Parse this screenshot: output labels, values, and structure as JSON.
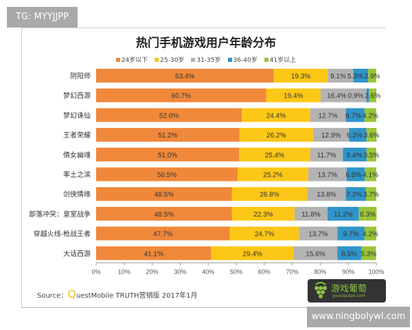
{
  "watermark_top": "TG: MYYJJPP",
  "watermark_bottom": "www.ningbolywl.com",
  "logo": {
    "name": "游戏葡萄",
    "url": "youxiputao.com"
  },
  "source": {
    "prefix": "Source：",
    "q": "Q",
    "rest": "uestMobile TRUTH营销版 2017年1月"
  },
  "chart_data": {
    "type": "bar",
    "stacked": true,
    "orientation": "horizontal",
    "title": "热门手机游戏用户年龄分布",
    "categories": [
      "阴阳师",
      "梦幻西游",
      "梦幻诛仙",
      "王者荣耀",
      "倩女幽魂",
      "率土之滨",
      "剑侠情缘",
      "部落冲突：皇室战争",
      "穿越火线-枪战王者",
      "大话西游"
    ],
    "series": [
      {
        "name": "24岁以下",
        "color": "#f0883a",
        "values": [
          63.4,
          60.7,
          52.0,
          51.2,
          51.0,
          50.5,
          48.5,
          48.5,
          47.7,
          41.1
        ]
      },
      {
        "name": "25-30岁",
        "color": "#fcc716",
        "values": [
          19.3,
          19.4,
          24.4,
          26.2,
          25.4,
          25.2,
          26.8,
          22.3,
          24.7,
          29.4
        ]
      },
      {
        "name": "31-35岁",
        "color": "#b3b3b3",
        "values": [
          9.1,
          16.4,
          12.7,
          12.9,
          11.7,
          13.7,
          13.8,
          11.8,
          13.7,
          15.6
        ]
      },
      {
        "name": "36-40岁",
        "color": "#2f94c9",
        "values": [
          5.3,
          0.9,
          6.7,
          6.2,
          8.4,
          6.5,
          7.2,
          11.2,
          9.7,
          8.5
        ]
      },
      {
        "name": "41岁以上",
        "color": "#9ac538",
        "values": [
          2.9,
          2.6,
          4.2,
          3.6,
          3.5,
          4.1,
          3.7,
          6.3,
          4.2,
          5.3
        ]
      }
    ],
    "xlim": [
      0,
      100
    ],
    "xticks": [
      "0%",
      "10%",
      "20%",
      "30%",
      "40%",
      "50%",
      "60%",
      "70%",
      "80%",
      "90%",
      "100%"
    ],
    "legend_position": "top",
    "grid": false
  }
}
